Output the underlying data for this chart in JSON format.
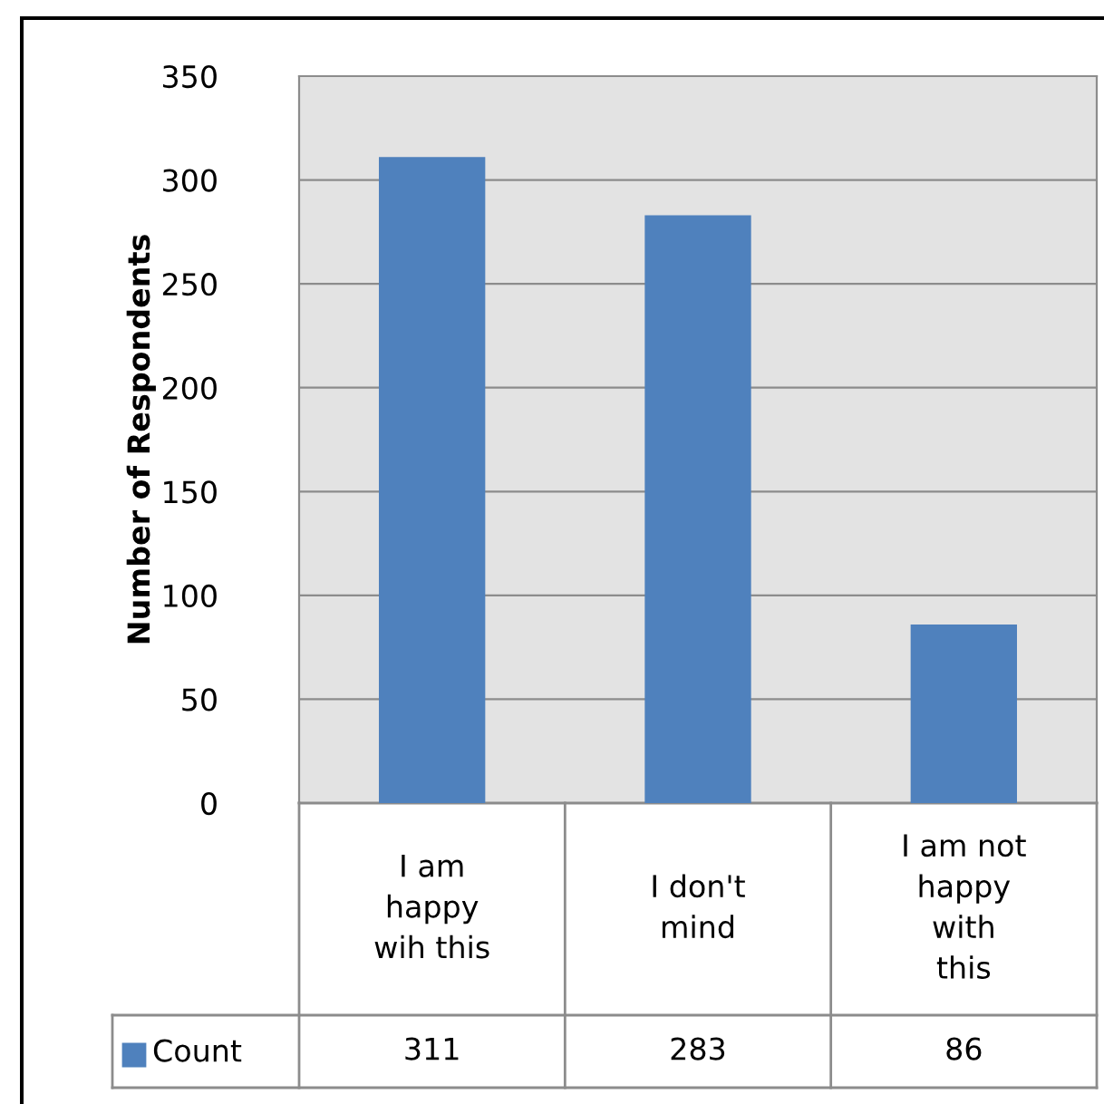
{
  "chart_data": {
    "type": "bar",
    "categories": [
      "I am happy wih this",
      "I don't mind",
      "I am not happy with this"
    ],
    "series": [
      {
        "name": "Count",
        "color": "#4f81bd",
        "values": [
          311,
          283,
          86
        ]
      }
    ],
    "ylabel": "Number of Respondents",
    "ylim": [
      0,
      350
    ],
    "yticks": [
      0,
      50,
      100,
      150,
      200,
      250,
      300,
      350
    ],
    "grid": "y",
    "data_labels": true,
    "legend": "bottom"
  }
}
